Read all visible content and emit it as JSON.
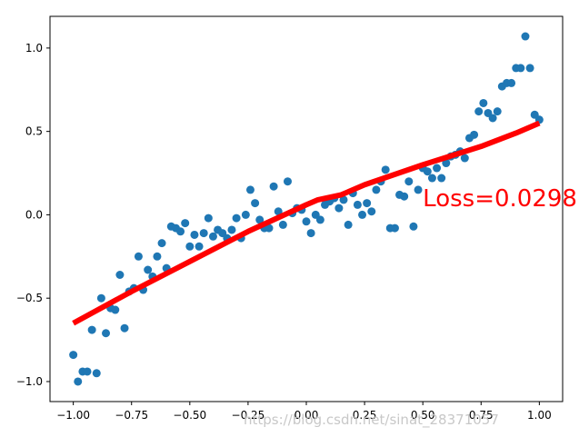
{
  "chart_data": {
    "type": "scatter",
    "xlim": [
      -1.1,
      1.1
    ],
    "ylim": [
      -1.12,
      1.19
    ],
    "x_ticks": [
      -1.0,
      -0.75,
      -0.5,
      -0.25,
      0.0,
      0.25,
      0.5,
      0.75,
      1.0
    ],
    "x_tick_labels": [
      "−1.00",
      "−0.75",
      "−0.50",
      "−0.25",
      "0.00",
      "0.25",
      "0.50",
      "0.75",
      "1.00"
    ],
    "y_ticks": [
      1.0,
      0.5,
      0.0,
      -0.5,
      -1.0
    ],
    "y_tick_labels": [
      "1.0",
      "0.5",
      "0.0",
      "−0.5",
      "−1.0"
    ],
    "grid": false,
    "scatter_color": "#1f77b4",
    "line_color": "#ff0000",
    "scatter": {
      "x": [
        -1.0,
        -0.98,
        -0.96,
        -0.94,
        -0.92,
        -0.9,
        -0.88,
        -0.86,
        -0.84,
        -0.82,
        -0.8,
        -0.78,
        -0.76,
        -0.74,
        -0.72,
        -0.7,
        -0.68,
        -0.66,
        -0.64,
        -0.62,
        -0.6,
        -0.58,
        -0.56,
        -0.54,
        -0.52,
        -0.5,
        -0.48,
        -0.46,
        -0.44,
        -0.42,
        -0.4,
        -0.38,
        -0.36,
        -0.34,
        -0.32,
        -0.3,
        -0.28,
        -0.26,
        -0.24,
        -0.22,
        -0.2,
        -0.18,
        -0.16,
        -0.14,
        -0.12,
        -0.1,
        -0.08,
        -0.06,
        -0.04,
        -0.02,
        0.0,
        0.02,
        0.04,
        0.06,
        0.08,
        0.1,
        0.12,
        0.14,
        0.16,
        0.18,
        0.2,
        0.22,
        0.24,
        0.26,
        0.28,
        0.3,
        0.32,
        0.34,
        0.36,
        0.38,
        0.4,
        0.42,
        0.44,
        0.46,
        0.48,
        0.5,
        0.52,
        0.54,
        0.56,
        0.58,
        0.6,
        0.62,
        0.64,
        0.66,
        0.68,
        0.7,
        0.72,
        0.74,
        0.76,
        0.78,
        0.8,
        0.82,
        0.84,
        0.86,
        0.88,
        0.9,
        0.92,
        0.94,
        0.96,
        0.98,
        1.0
      ],
      "y": [
        -0.84,
        -1.0,
        -0.94,
        -0.94,
        -0.69,
        -0.95,
        -0.5,
        -0.71,
        -0.56,
        -0.57,
        -0.36,
        -0.68,
        -0.46,
        -0.44,
        -0.25,
        -0.45,
        -0.33,
        -0.37,
        -0.25,
        -0.17,
        -0.32,
        -0.07,
        -0.08,
        -0.1,
        -0.05,
        -0.19,
        -0.12,
        -0.19,
        -0.11,
        -0.02,
        -0.13,
        -0.09,
        -0.11,
        -0.14,
        -0.09,
        -0.02,
        -0.14,
        0.0,
        0.15,
        0.07,
        -0.03,
        -0.08,
        -0.08,
        0.17,
        0.02,
        -0.06,
        0.2,
        0.01,
        0.04,
        0.03,
        -0.04,
        -0.11,
        0.0,
        -0.03,
        0.06,
        0.08,
        0.1,
        0.04,
        0.09,
        -0.06,
        0.13,
        0.06,
        0.0,
        0.07,
        0.02,
        0.15,
        0.2,
        0.27,
        -0.08,
        -0.08,
        0.12,
        0.11,
        0.2,
        -0.07,
        0.15,
        0.28,
        0.26,
        0.22,
        0.28,
        0.22,
        0.31,
        0.35,
        0.36,
        0.38,
        0.34,
        0.46,
        0.48,
        0.62,
        0.67,
        0.61,
        0.58,
        0.62,
        0.77,
        0.79,
        0.79,
        0.88,
        0.88,
        1.07,
        0.88,
        0.6,
        0.57
      ]
    },
    "fit_line": {
      "x": [
        -1.0,
        -0.75,
        -0.5,
        -0.25,
        0.0,
        0.05,
        0.15,
        0.25,
        0.5,
        0.75,
        0.9,
        1.0
      ],
      "y": [
        -0.65,
        -0.46,
        -0.28,
        -0.1,
        0.06,
        0.09,
        0.12,
        0.18,
        0.3,
        0.41,
        0.49,
        0.55
      ]
    },
    "annotation": {
      "text": "Loss=0.0298",
      "x": 0.5,
      "y": 0.05,
      "color": "#ff0000"
    }
  },
  "watermark": "https://blog.csdn.net/sinat_28371057"
}
